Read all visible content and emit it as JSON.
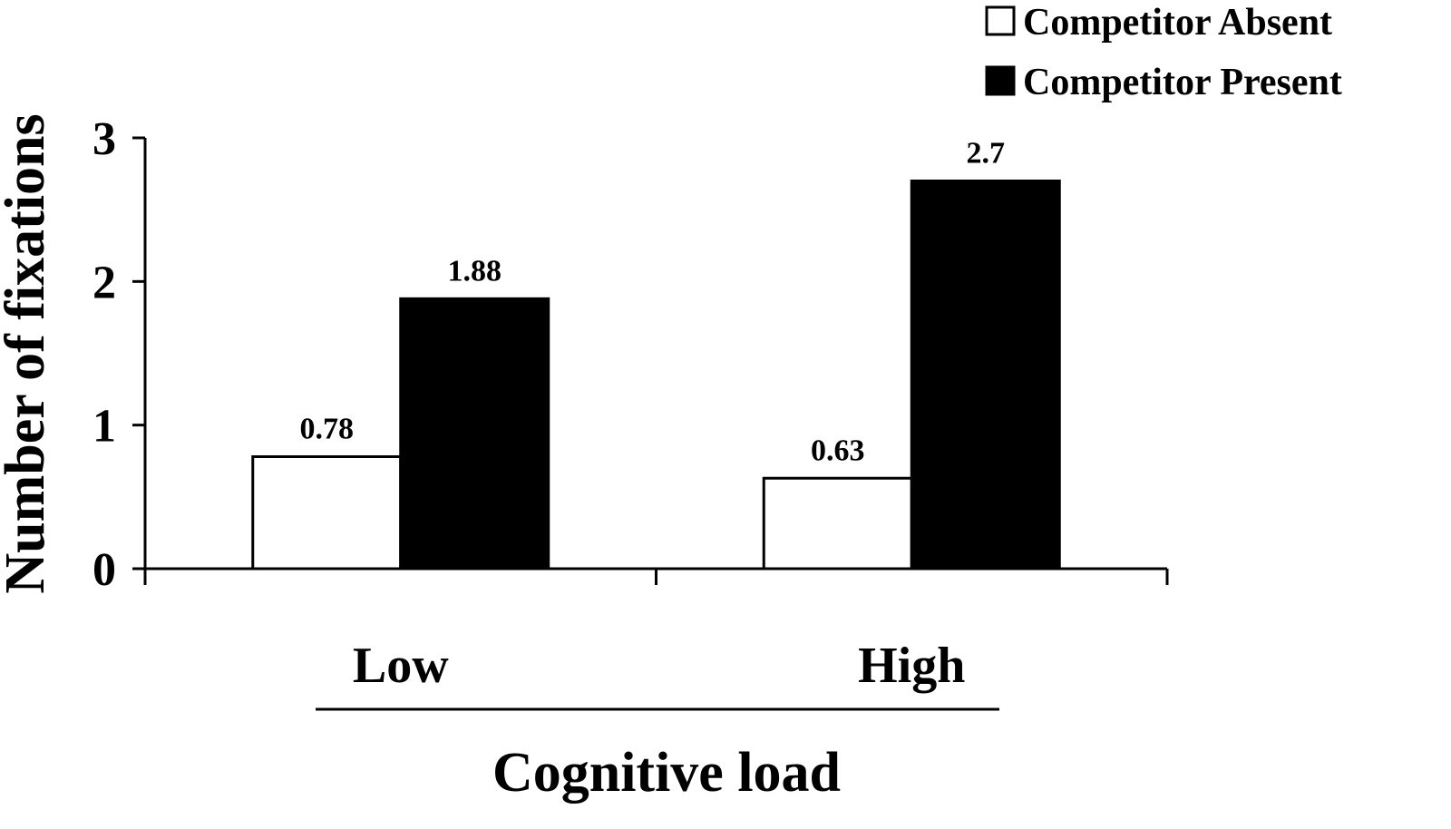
{
  "chart_data": {
    "type": "bar",
    "title": "",
    "xlabel": "Cognitive load",
    "ylabel": "Number of fixations",
    "categories": [
      "Low",
      "High"
    ],
    "series": [
      {
        "name": "Competitor Absent",
        "values": [
          0.78,
          0.63
        ],
        "color": "#ffffff"
      },
      {
        "name": "Competitor Present",
        "values": [
          1.88,
          2.7
        ],
        "color": "#000000"
      }
    ],
    "data_labels": [
      [
        "0.78",
        "0.63"
      ],
      [
        "1.88",
        "2.7"
      ]
    ],
    "ylim": [
      0,
      3
    ],
    "yticks": [
      "0",
      "1",
      "2",
      "3"
    ],
    "grid": false,
    "legend_position": "top-right"
  }
}
